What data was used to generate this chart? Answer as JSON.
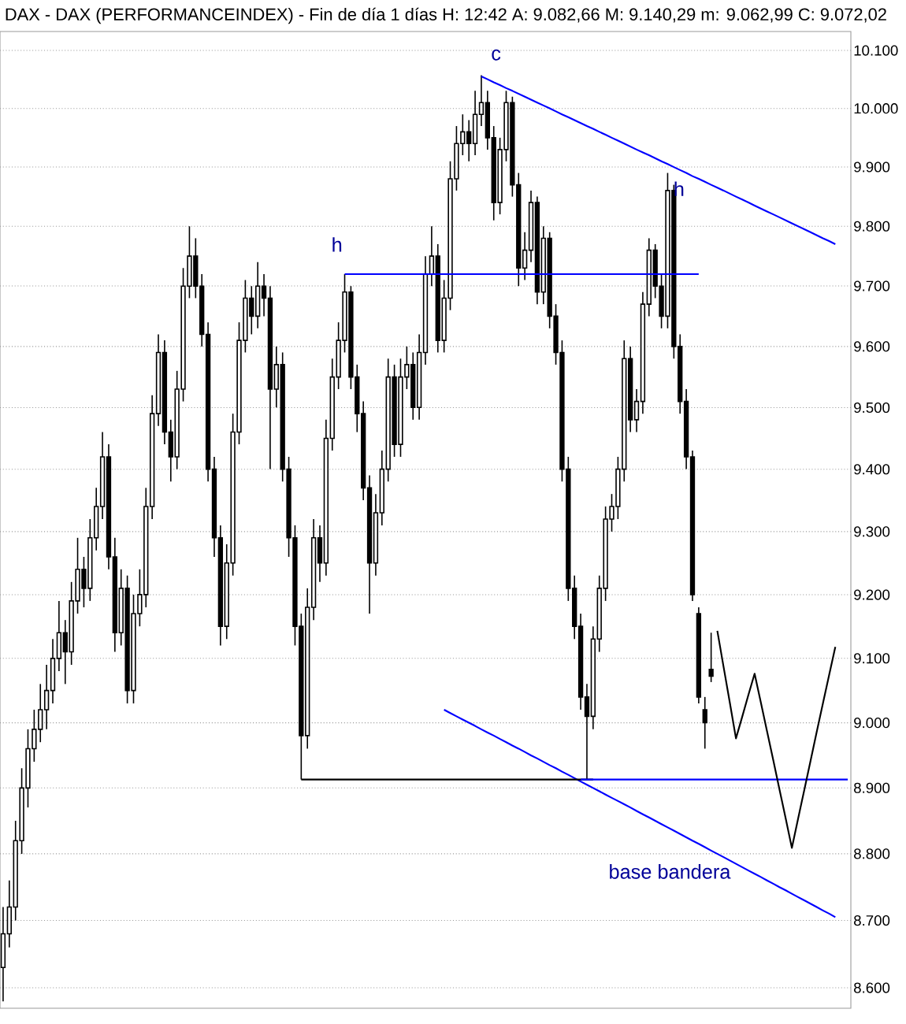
{
  "chart_data": {
    "type": "candlestick",
    "title": "DAX - DAX (PERFORMANCEINDEX) - Fin de día 1 días H: 12:42 A: 9.082,66 M: 9.140,29 m: 9.062,99 C: 9.072,02",
    "color": "#000000",
    "categories": [
      null,
      null,
      null,
      null,
      null,
      null,
      null,
      null,
      null,
      null,
      null,
      null,
      null,
      null,
      null,
      null,
      null,
      null,
      null,
      null,
      null,
      null,
      null,
      null,
      null,
      null,
      null,
      null,
      null,
      null,
      null,
      null,
      null,
      null,
      null,
      null,
      null,
      null,
      null,
      null,
      null,
      null,
      null,
      null,
      null,
      null,
      null,
      null,
      null,
      null,
      null,
      null,
      null,
      null,
      null,
      null,
      null,
      null,
      null,
      null,
      null,
      null,
      null,
      null,
      null,
      null,
      null,
      null,
      null,
      null,
      null,
      null,
      null,
      null,
      null,
      null,
      null,
      null,
      null,
      null,
      null,
      null,
      null,
      null,
      null,
      null,
      null,
      null,
      null,
      null,
      null,
      null,
      null,
      null,
      null,
      null,
      null,
      null,
      null,
      null,
      null,
      null,
      null,
      null,
      null,
      null,
      null,
      null,
      null,
      null,
      null,
      null,
      null,
      null,
      null,
      null,
      null,
      null,
      null,
      null,
      null,
      null,
      null,
      null,
      null,
      null,
      null,
      null,
      null,
      null,
      null,
      null,
      null,
      null,
      null,
      null,
      null
    ],
    "ohlc": [
      [
        8630,
        8720,
        8580,
        8680
      ],
      [
        8680,
        8760,
        8660,
        8720
      ],
      [
        8720,
        8850,
        8700,
        8820
      ],
      [
        8820,
        8930,
        8800,
        8900
      ],
      [
        8900,
        8990,
        8870,
        8960
      ],
      [
        8960,
        9020,
        8940,
        8990
      ],
      [
        8990,
        9060,
        8970,
        9020
      ],
      [
        9020,
        9090,
        8990,
        9050
      ],
      [
        9050,
        9130,
        9030,
        9100
      ],
      [
        9100,
        9190,
        9080,
        9140
      ],
      [
        9140,
        9160,
        9060,
        9110
      ],
      [
        9110,
        9220,
        9090,
        9190
      ],
      [
        9190,
        9290,
        9170,
        9240
      ],
      [
        9240,
        9260,
        9180,
        9210
      ],
      [
        9210,
        9320,
        9190,
        9290
      ],
      [
        9290,
        9370,
        9270,
        9340
      ],
      [
        9340,
        9460,
        9320,
        9420
      ],
      [
        9420,
        9440,
        9240,
        9260
      ],
      [
        9260,
        9290,
        9110,
        9140
      ],
      [
        9140,
        9240,
        9120,
        9210
      ],
      [
        9210,
        9230,
        9030,
        9050
      ],
      [
        9050,
        9200,
        9030,
        9170
      ],
      [
        9170,
        9240,
        9150,
        9200
      ],
      [
        9200,
        9370,
        9180,
        9340
      ],
      [
        9340,
        9520,
        9320,
        9490
      ],
      [
        9490,
        9620,
        9470,
        9590
      ],
      [
        9590,
        9610,
        9440,
        9460
      ],
      [
        9460,
        9480,
        9380,
        9420
      ],
      [
        9420,
        9560,
        9400,
        9530
      ],
      [
        9530,
        9730,
        9510,
        9700
      ],
      [
        9700,
        9800,
        9680,
        9750
      ],
      [
        9750,
        9780,
        9680,
        9700
      ],
      [
        9700,
        9720,
        9600,
        9620
      ],
      [
        9620,
        9640,
        9380,
        9400
      ],
      [
        9400,
        9420,
        9260,
        9290
      ],
      [
        9290,
        9310,
        9120,
        9150
      ],
      [
        9150,
        9280,
        9130,
        9250
      ],
      [
        9250,
        9490,
        9230,
        9460
      ],
      [
        9460,
        9640,
        9440,
        9610
      ],
      [
        9610,
        9710,
        9590,
        9680
      ],
      [
        9680,
        9700,
        9620,
        9650
      ],
      [
        9650,
        9740,
        9630,
        9700
      ],
      [
        9700,
        9720,
        9650,
        9680
      ],
      [
        9680,
        9700,
        9400,
        9530
      ],
      [
        9530,
        9600,
        9500,
        9570
      ],
      [
        9570,
        9590,
        9380,
        9400
      ],
      [
        9400,
        9420,
        9260,
        9290
      ],
      [
        9290,
        9310,
        9120,
        9150
      ],
      [
        9150,
        9170,
        8913,
        8980
      ],
      [
        8980,
        9210,
        8960,
        9180
      ],
      [
        9180,
        9320,
        9160,
        9290
      ],
      [
        9290,
        9310,
        9220,
        9250
      ],
      [
        9250,
        9480,
        9230,
        9450
      ],
      [
        9450,
        9580,
        9430,
        9550
      ],
      [
        9550,
        9640,
        9530,
        9610
      ],
      [
        9610,
        9720,
        9590,
        9690
      ],
      [
        9690,
        9700,
        9530,
        9550
      ],
      [
        9550,
        9570,
        9460,
        9490
      ],
      [
        9490,
        9510,
        9350,
        9370
      ],
      [
        9370,
        9390,
        9170,
        9250
      ],
      [
        9250,
        9360,
        9230,
        9330
      ],
      [
        9330,
        9430,
        9310,
        9400
      ],
      [
        9400,
        9580,
        9380,
        9550
      ],
      [
        9550,
        9570,
        9420,
        9440
      ],
      [
        9440,
        9580,
        9420,
        9550
      ],
      [
        9550,
        9600,
        9530,
        9570
      ],
      [
        9570,
        9590,
        9480,
        9500
      ],
      [
        9500,
        9620,
        9480,
        9590
      ],
      [
        9590,
        9750,
        9570,
        9720
      ],
      [
        9720,
        9800,
        9700,
        9750
      ],
      [
        9750,
        9770,
        9590,
        9610
      ],
      [
        9610,
        9710,
        9590,
        9680
      ],
      [
        9680,
        9910,
        9660,
        9880
      ],
      [
        9880,
        9970,
        9860,
        9940
      ],
      [
        9940,
        9990,
        9920,
        9960
      ],
      [
        9960,
        9980,
        9910,
        9940
      ],
      [
        9940,
        10030,
        9920,
        9990
      ],
      [
        9990,
        10057,
        9970,
        10010
      ],
      [
        10010,
        10030,
        9930,
        9950
      ],
      [
        9950,
        9970,
        9810,
        9840
      ],
      [
        9840,
        9950,
        9820,
        9930
      ],
      [
        9930,
        10030,
        9910,
        10010
      ],
      [
        10010,
        10020,
        9850,
        9870
      ],
      [
        9870,
        9890,
        9700,
        9730
      ],
      [
        9730,
        9790,
        9710,
        9760
      ],
      [
        9760,
        9860,
        9740,
        9840
      ],
      [
        9840,
        9850,
        9670,
        9690
      ],
      [
        9690,
        9800,
        9670,
        9780
      ],
      [
        9780,
        9790,
        9630,
        9650
      ],
      [
        9650,
        9670,
        9570,
        9590
      ],
      [
        9590,
        9610,
        9380,
        9400
      ],
      [
        9400,
        9420,
        9190,
        9210
      ],
      [
        9210,
        9230,
        9130,
        9150
      ],
      [
        9150,
        9170,
        9020,
        9040
      ],
      [
        9040,
        9060,
        8913,
        9010
      ],
      [
        9010,
        9150,
        8990,
        9130
      ],
      [
        9130,
        9230,
        9110,
        9210
      ],
      [
        9210,
        9340,
        9190,
        9320
      ],
      [
        9320,
        9360,
        9300,
        9340
      ],
      [
        9340,
        9420,
        9320,
        9400
      ],
      [
        9400,
        9610,
        9380,
        9580
      ],
      [
        9580,
        9600,
        9460,
        9480
      ],
      [
        9480,
        9530,
        9460,
        9510
      ],
      [
        9510,
        9690,
        9490,
        9670
      ],
      [
        9670,
        9780,
        9650,
        9760
      ],
      [
        9760,
        9770,
        9680,
        9700
      ],
      [
        9700,
        9720,
        9630,
        9650
      ],
      [
        9650,
        9890,
        9630,
        9860
      ],
      [
        9860,
        9870,
        9580,
        9600
      ],
      [
        9600,
        9620,
        9490,
        9510
      ],
      [
        9510,
        9530,
        9400,
        9420
      ],
      [
        9420,
        9430,
        9190,
        9200
      ],
      [
        9170,
        9180,
        9030,
        9040
      ],
      [
        9020,
        9040,
        8960,
        9000
      ],
      [
        9082.66,
        9140.29,
        9062.99,
        9072.02
      ],
      null,
      null,
      null,
      null,
      null,
      null,
      null,
      null,
      null,
      null,
      null,
      null,
      null,
      null,
      null,
      null,
      null,
      null,
      null,
      null,
      null,
      null
    ],
    "series": [
      {
        "type": "line",
        "color": "#0000ff",
        "values": [
          null,
          null,
          null,
          null,
          null,
          null,
          null,
          null,
          null,
          null,
          null,
          null,
          null,
          null,
          null,
          null,
          null,
          null,
          null,
          null,
          null,
          null,
          null,
          null,
          null,
          null,
          null,
          null,
          null,
          null,
          null,
          null,
          null,
          null,
          null,
          null,
          null,
          null,
          null,
          null,
          null,
          null,
          null,
          null,
          null,
          null,
          null,
          null,
          null,
          null,
          null,
          null,
          null,
          null,
          null,
          null,
          null,
          null,
          null,
          null,
          null,
          null,
          null,
          null,
          null,
          null,
          null,
          null,
          null,
          null,
          null,
          null,
          null,
          null,
          null,
          null,
          null,
          10055,
          10050,
          10045,
          10040,
          10035,
          10030,
          10025,
          10020,
          10015,
          10010,
          10005,
          10000,
          9995,
          9990,
          9985,
          9980,
          9975,
          9970,
          9965,
          9960,
          9955,
          9950,
          9945,
          9940,
          9935,
          9930,
          9925,
          9920,
          9915,
          9910,
          9905,
          9900,
          9895,
          9890,
          9885,
          9880,
          9875,
          9870,
          9865,
          9860,
          9855,
          9850,
          9845,
          9840,
          9835,
          9830,
          9825,
          9820,
          9815,
          9810,
          9805,
          9800,
          9795,
          9790,
          9785,
          9780,
          9775,
          9770,
          null,
          null
        ]
      },
      {
        "type": "line",
        "color": "#0000ff",
        "values": [
          null,
          null,
          null,
          null,
          null,
          null,
          null,
          null,
          null,
          null,
          null,
          null,
          null,
          null,
          null,
          null,
          null,
          null,
          null,
          null,
          null,
          null,
          null,
          null,
          null,
          null,
          null,
          null,
          null,
          null,
          null,
          null,
          null,
          null,
          null,
          null,
          null,
          null,
          null,
          null,
          null,
          null,
          null,
          null,
          null,
          null,
          null,
          null,
          null,
          null,
          null,
          null,
          null,
          null,
          null,
          null,
          null,
          null,
          null,
          null,
          null,
          null,
          null,
          null,
          null,
          null,
          null,
          null,
          null,
          null,
          null,
          9020,
          9015,
          9010,
          9005,
          9000,
          8995,
          8990,
          8985,
          8980,
          8975,
          8970,
          8965,
          8960,
          8955,
          8950,
          8945,
          8940,
          8935,
          8930,
          8925,
          8920,
          8915,
          8910,
          8905,
          8900,
          8895,
          8890,
          8885,
          8880,
          8875,
          8870,
          8865,
          8860,
          8855,
          8850,
          8845,
          8840,
          8835,
          8830,
          8825,
          8820,
          8815,
          8810,
          8805,
          8800,
          8795,
          8790,
          8785,
          8780,
          8775,
          8770,
          8765,
          8760,
          8755,
          8750,
          8745,
          8740,
          8735,
          8730,
          8725,
          8720,
          8715,
          8710,
          8705,
          null,
          null
        ]
      },
      {
        "type": "line",
        "color": "#0000ff",
        "values": [
          null,
          null,
          null,
          null,
          null,
          null,
          null,
          null,
          null,
          null,
          null,
          null,
          null,
          null,
          null,
          null,
          null,
          null,
          null,
          null,
          null,
          null,
          null,
          null,
          null,
          null,
          null,
          null,
          null,
          null,
          null,
          null,
          null,
          null,
          null,
          null,
          null,
          null,
          null,
          null,
          null,
          null,
          null,
          null,
          null,
          null,
          null,
          null,
          null,
          null,
          null,
          null,
          null,
          null,
          null,
          9720,
          9720,
          9720,
          9720,
          9720,
          9720,
          9720,
          9720,
          9720,
          9720,
          9720,
          9720,
          9720,
          9720,
          9720,
          9720,
          9720,
          9720,
          9720,
          9720,
          9720,
          9720,
          9720,
          9720,
          9720,
          9720,
          9720,
          9720,
          9720,
          9720,
          9720,
          9720,
          9720,
          9720,
          9720,
          9720,
          9720,
          9720,
          9720,
          9720,
          9720,
          9720,
          9720,
          9720,
          9720,
          9720,
          9720,
          9720,
          9720,
          9720,
          9720,
          9720,
          9720,
          9720,
          9720,
          9720,
          9720,
          9720,
          null,
          null,
          null,
          null,
          null,
          null,
          null,
          null,
          null,
          null,
          null,
          null,
          null,
          null,
          null,
          null,
          null,
          null,
          null,
          null,
          null,
          null,
          null,
          null
        ]
      },
      {
        "type": "line",
        "color": "#000000",
        "values": [
          null,
          null,
          null,
          null,
          null,
          null,
          null,
          null,
          null,
          null,
          null,
          null,
          null,
          null,
          null,
          null,
          null,
          null,
          null,
          null,
          null,
          null,
          null,
          null,
          null,
          null,
          null,
          null,
          null,
          null,
          null,
          null,
          null,
          null,
          null,
          null,
          null,
          null,
          null,
          null,
          null,
          null,
          null,
          null,
          null,
          null,
          null,
          null,
          8913,
          8913,
          8913,
          8913,
          8913,
          8913,
          8913,
          8913,
          8913,
          8913,
          8913,
          8913,
          8913,
          8913,
          8913,
          8913,
          8913,
          8913,
          8913,
          8913,
          8913,
          8913,
          8913,
          8913,
          8913,
          8913,
          8913,
          8913,
          8913,
          8913,
          8913,
          8913,
          8913,
          8913,
          8913,
          8913,
          8913,
          8913,
          8913,
          8913,
          8913,
          8913,
          8913,
          8913,
          8913,
          8913,
          8913,
          8913,
          null,
          null,
          null,
          null,
          null,
          null,
          null,
          null,
          null,
          null,
          null,
          null,
          null,
          null,
          null,
          null,
          null,
          null,
          null,
          null,
          null,
          null,
          null,
          null,
          null,
          null,
          null,
          null,
          null,
          null,
          null,
          null,
          null,
          null,
          null,
          null,
          null,
          null,
          null,
          null,
          null
        ]
      },
      {
        "type": "line",
        "color": "#0000ff",
        "values": [
          null,
          null,
          null,
          null,
          null,
          null,
          null,
          null,
          null,
          null,
          null,
          null,
          null,
          null,
          null,
          null,
          null,
          null,
          null,
          null,
          null,
          null,
          null,
          null,
          null,
          null,
          null,
          null,
          null,
          null,
          null,
          null,
          null,
          null,
          null,
          null,
          null,
          null,
          null,
          null,
          null,
          null,
          null,
          null,
          null,
          null,
          null,
          null,
          null,
          null,
          null,
          null,
          null,
          null,
          null,
          null,
          null,
          null,
          null,
          null,
          null,
          null,
          null,
          null,
          null,
          null,
          null,
          null,
          null,
          null,
          null,
          null,
          null,
          null,
          null,
          null,
          null,
          null,
          null,
          null,
          null,
          null,
          null,
          null,
          null,
          null,
          null,
          null,
          null,
          null,
          null,
          null,
          null,
          8913,
          8913,
          8913,
          8913,
          8913,
          8913,
          8913,
          8913,
          8913,
          8913,
          8913,
          8913,
          8913,
          8913,
          8913,
          8913,
          8913,
          8913,
          8913,
          8913,
          8913,
          8913,
          8913,
          8913,
          8913,
          8913,
          8913,
          8913,
          8913,
          8913,
          8913,
          8913,
          8913,
          8913,
          8913,
          8913,
          8913,
          8913,
          8913,
          8913,
          8913,
          8913,
          8913,
          8913
        ]
      },
      {
        "type": "line",
        "color": "#000000",
        "values": [
          null,
          null,
          null,
          null,
          null,
          null,
          null,
          null,
          null,
          null,
          null,
          null,
          null,
          null,
          null,
          null,
          null,
          null,
          null,
          null,
          null,
          null,
          null,
          null,
          null,
          null,
          null,
          null,
          null,
          null,
          null,
          null,
          null,
          null,
          null,
          null,
          null,
          null,
          null,
          null,
          null,
          null,
          null,
          null,
          null,
          null,
          null,
          null,
          null,
          null,
          null,
          null,
          null,
          null,
          null,
          null,
          null,
          null,
          null,
          null,
          null,
          null,
          null,
          null,
          null,
          null,
          null,
          null,
          null,
          null,
          null,
          null,
          null,
          null,
          null,
          null,
          null,
          null,
          null,
          null,
          null,
          null,
          null,
          null,
          null,
          null,
          null,
          null,
          null,
          null,
          null,
          null,
          null,
          null,
          null,
          null,
          null,
          null,
          null,
          null,
          null,
          null,
          null,
          null,
          null,
          null,
          null,
          null,
          null,
          null,
          null,
          null,
          null,
          null,
          null,
          9143,
          9087,
          9032,
          8976,
          9009,
          9043,
          9076,
          9032,
          8987,
          8943,
          8898,
          8854,
          8809,
          8853,
          8897,
          8941,
          8986,
          9030,
          9074,
          9118,
          null,
          null
        ]
      }
    ],
    "annotations": [
      "c",
      "h",
      "h",
      "base bandera"
    ],
    "ylim": [
      8570,
      10133
    ],
    "yticks": [
      {
        "value": 8600,
        "label": "8.600"
      },
      {
        "value": 8700,
        "label": "8.700"
      },
      {
        "value": 8800,
        "label": "8.800"
      },
      {
        "value": 8900,
        "label": "8.900"
      },
      {
        "value": 9000,
        "label": "9.000"
      },
      {
        "value": 9100,
        "label": "9.100"
      },
      {
        "value": 9200,
        "label": "9.200"
      },
      {
        "value": 9300,
        "label": "9.300"
      },
      {
        "value": 9400,
        "label": "9.400"
      },
      {
        "value": 9500,
        "label": "9.500"
      },
      {
        "value": 9600,
        "label": "9.600"
      },
      {
        "value": 9700,
        "label": "9.700"
      },
      {
        "value": 9800,
        "label": "9.800"
      },
      {
        "value": 9900,
        "label": "9.900"
      },
      {
        "value": 10000,
        "label": "10.000"
      },
      {
        "value": 10100,
        "label": "10.100"
      }
    ],
    "log": "y",
    "grid": "y",
    "tick_labels": "y"
  }
}
